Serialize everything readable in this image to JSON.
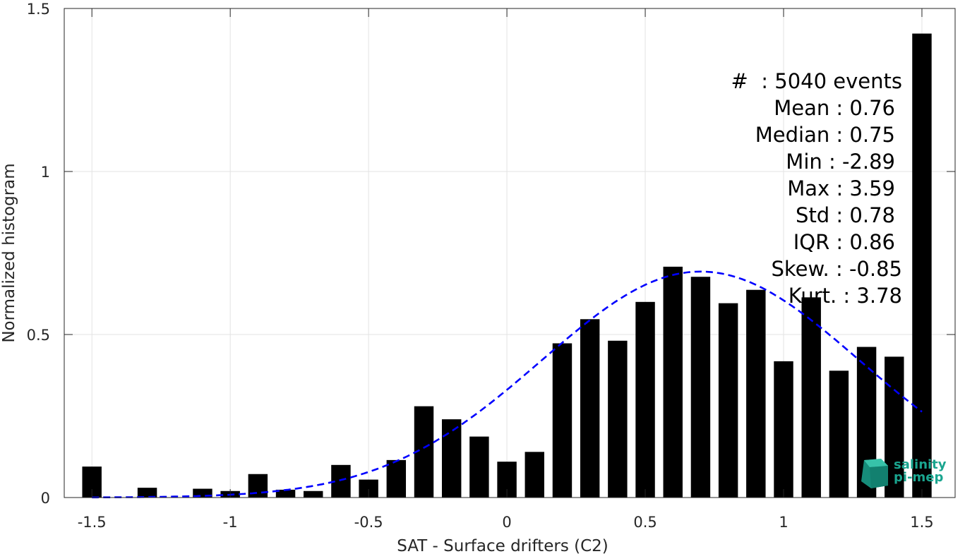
{
  "chart_data": {
    "type": "bar",
    "xlabel": "SAT - Surface drifters (C2)",
    "ylabel": "Normalized histogram",
    "xlim": [
      -1.6,
      1.62
    ],
    "ylim": [
      0,
      1.5
    ],
    "x_ticks": [
      -1.5,
      -1,
      -0.5,
      0,
      0.5,
      1,
      1.5
    ],
    "x_tick_labels": [
      "-1.5",
      "-1",
      "-0.5",
      "0",
      "0.5",
      "1",
      "1.5"
    ],
    "y_ticks": [
      0,
      0.5,
      1,
      1.5
    ],
    "y_tick_labels": [
      "0",
      "0.5",
      "1",
      "1.5"
    ],
    "grid": true,
    "bar_color": "#000000",
    "bin_width": 0.1,
    "x": [
      -1.5,
      -1.4,
      -1.3,
      -1.2,
      -1.1,
      -1.0,
      -0.9,
      -0.8,
      -0.7,
      -0.6,
      -0.5,
      -0.4,
      -0.3,
      -0.2,
      -0.1,
      0.0,
      0.1,
      0.2,
      0.3,
      0.4,
      0.5,
      0.6,
      0.7,
      0.8,
      0.9,
      1.0,
      1.1,
      1.2,
      1.3,
      1.4,
      1.5
    ],
    "values": [
      0.095,
      0.0,
      0.03,
      0.0,
      0.027,
      0.02,
      0.072,
      0.024,
      0.02,
      0.1,
      0.055,
      0.115,
      0.28,
      0.24,
      0.187,
      0.11,
      0.14,
      0.473,
      0.547,
      0.481,
      0.6,
      0.708,
      0.677,
      0.596,
      0.637,
      0.418,
      0.614,
      0.389,
      0.462,
      0.432,
      1.423
    ],
    "fit_curve": {
      "style": "dashed",
      "color": "#0000ff",
      "mean": 0.7,
      "std": 0.575,
      "amplitude": 0.693,
      "x_range": [
        -1.5,
        1.5
      ]
    },
    "stats_lines": [
      "#  : 5040 events",
      "Mean : 0.76",
      "Median : 0.75",
      "Min : -2.89",
      "Max : 3.59",
      "Std : 0.78",
      "IQR : 0.86",
      "Skew. : -0.85",
      "Kurt. : 3.78"
    ]
  },
  "logo": {
    "line1": "salinity",
    "line2": "pi-mep",
    "color": "#1aa58f"
  }
}
